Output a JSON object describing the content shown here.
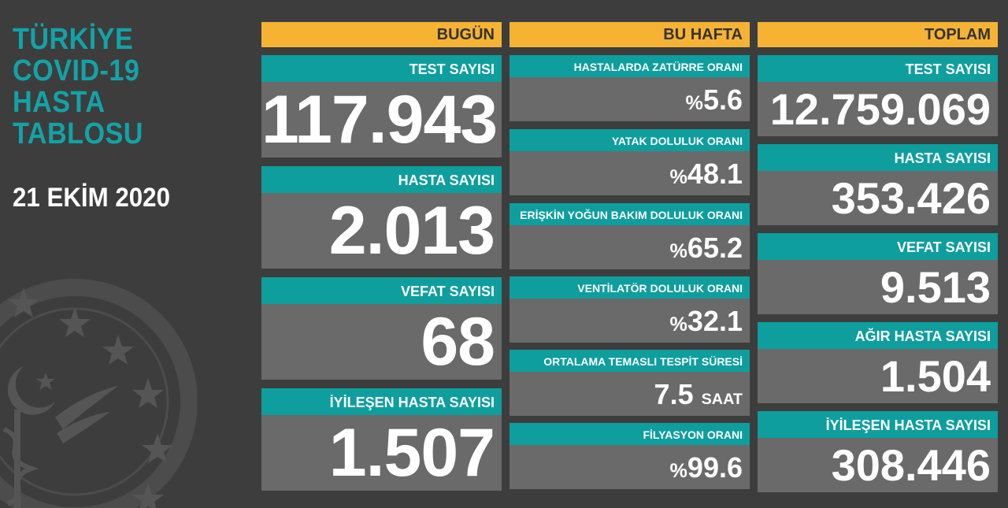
{
  "title_lines": [
    "TÜRKİYE",
    "COVID-19",
    "HASTA",
    "TABLOSU"
  ],
  "date": "21 EKİM 2020",
  "today": {
    "header": "BUGÜN",
    "items": [
      {
        "label": "TEST SAYISI",
        "value": "117.943"
      },
      {
        "label": "HASTA SAYISI",
        "value": "2.013"
      },
      {
        "label": "VEFAT SAYISI",
        "value": "68"
      },
      {
        "label": "İYİLEŞEN HASTA SAYISI",
        "value": "1.507"
      }
    ]
  },
  "week": {
    "header": "BU HAFTA",
    "items": [
      {
        "label": "HASTALARDA ZATÜRRE ORANI",
        "prefix": "%",
        "value": "5.6",
        "unit": ""
      },
      {
        "label": "YATAK DOLULUK ORANI",
        "prefix": "%",
        "value": "48.1",
        "unit": ""
      },
      {
        "label": "ERİŞKİN YOĞUN BAKIM DOLULUK ORANI",
        "prefix": "%",
        "value": "65.2",
        "unit": ""
      },
      {
        "label": "VENTİLATÖR DOLULUK ORANI",
        "prefix": "%",
        "value": "32.1",
        "unit": ""
      },
      {
        "label": "ORTALAMA TEMASLI TESPİT SÜRESİ",
        "prefix": "",
        "value": "7.5",
        "unit": "SAAT"
      },
      {
        "label": "FİLYASYON ORANI",
        "prefix": "%",
        "value": "99.6",
        "unit": ""
      }
    ]
  },
  "total": {
    "header": "TOPLAM",
    "items": [
      {
        "label": "TEST SAYISI",
        "value": "12.759.069"
      },
      {
        "label": "HASTA SAYISI",
        "value": "353.426"
      },
      {
        "label": "VEFAT SAYISI",
        "value": "9.513"
      },
      {
        "label": "AĞIR HASTA SAYISI",
        "value": "1.504"
      },
      {
        "label": "İYİLEŞEN HASTA SAYISI",
        "value": "308.446"
      }
    ]
  },
  "colors": {
    "background": "#3d3d3d",
    "header": "#f6b333",
    "label": "#0e9e9e",
    "value": "#6a6a6a",
    "title": "#12a3a8"
  },
  "icons": [
    "ministry-emblem-icon"
  ]
}
